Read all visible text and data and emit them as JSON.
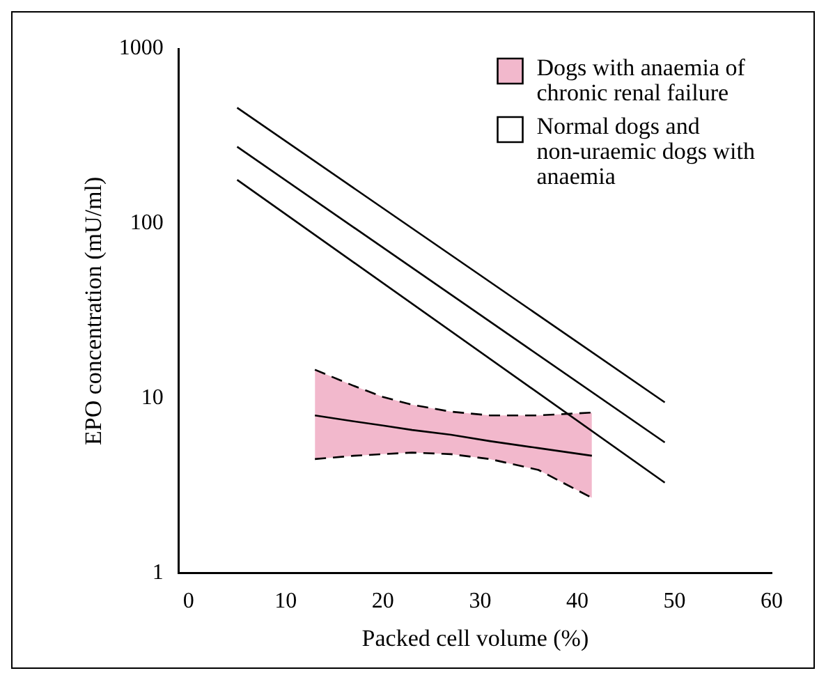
{
  "chart_data": {
    "type": "line",
    "xlabel": "Packed cell volume (%)",
    "ylabel": "EPO concentration (mU/ml)",
    "log": "y",
    "xlim": [
      -1,
      60
    ],
    "xticks": [
      0,
      10,
      20,
      30,
      40,
      50,
      60
    ],
    "ylim": [
      1,
      1000
    ],
    "yticks": [
      1,
      10,
      100,
      1000
    ],
    "grid": false,
    "legend": "top right",
    "marker": "none",
    "series": [
      {
        "name": "Dogs with anaemia of chronic renal failure",
        "color": "#000000",
        "x": [
          13,
          17,
          20,
          23,
          27,
          31,
          36,
          41.5
        ],
        "values": [
          8,
          7.4,
          7,
          6.6,
          6.2,
          5.7,
          5.2,
          4.7
        ],
        "lower": [
          4.5,
          4.7,
          4.8,
          4.9,
          4.8,
          4.5,
          3.9,
          2.7
        ],
        "upper": [
          14.6,
          11.8,
          10.2,
          9.2,
          8.4,
          8,
          8,
          8.3
        ]
      },
      {
        "name": "Normal dogs and non-uraemic dogs with anaemia",
        "color": "#000000",
        "x": [
          5,
          49
        ],
        "values": [
          275,
          5.6
        ]
      },
      {
        "color": "#000000",
        "x": [
          5,
          49
        ],
        "values": [
          460,
          9.5
        ]
      },
      {
        "color": "#000000",
        "x": [
          5,
          49
        ],
        "values": [
          178,
          3.3
        ]
      },
      {
        "color": "#000000",
        "line_style": "dashed",
        "x": [
          13,
          17,
          20,
          23,
          27,
          31,
          36,
          41.5
        ],
        "values": [
          4.5,
          4.7,
          4.8,
          4.9,
          4.8,
          4.5,
          3.9,
          2.7
        ]
      },
      {
        "color": "#000000",
        "line_style": "dashed",
        "x": [
          13,
          17,
          20,
          23,
          27,
          31,
          36,
          41.5
        ],
        "values": [
          14.6,
          11.8,
          10.2,
          9.2,
          8.4,
          8,
          8,
          8.3
        ]
      }
    ]
  }
}
